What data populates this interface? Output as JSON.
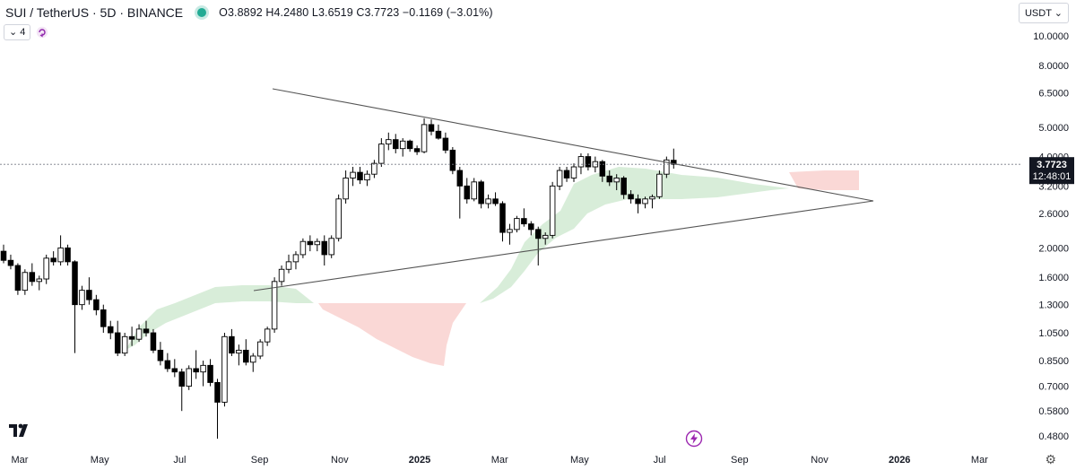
{
  "header": {
    "symbol": "SUI / TetherUS · 5D · BINANCE",
    "ohlc": "O3.8892 H4.2480 L3.6519 C3.7723 −0.1169 (−3.01%)",
    "indicator_count": "4",
    "currency": "USDT"
  },
  "price_label": {
    "price": "3.7723",
    "countdown": "12:48:01",
    "color": "#131722"
  },
  "chart_data": {
    "type": "candlestick",
    "scale": "log",
    "ylim": [
      0.45,
      11.5
    ],
    "y_ticks": [
      "10.0000",
      "8.0000",
      "6.5000",
      "5.0000",
      "4.0000",
      "3.2000",
      "2.6000",
      "2.0000",
      "1.6000",
      "1.3000",
      "1.0500",
      "0.8500",
      "0.7000",
      "0.5800",
      "0.4800"
    ],
    "x_ticks": [
      "Mar",
      "May",
      "Jul",
      "Sep",
      "Nov",
      "2025",
      "Mar",
      "May",
      "Jul",
      "Sep",
      "Nov",
      "2026",
      "Mar"
    ],
    "last_price": 3.7723,
    "colors": {
      "up": "#ffffff",
      "down": "#000000",
      "outline": "#000000",
      "cloud_bull": "#c8e6c9",
      "cloud_bear": "#f8c8c4",
      "trendline": "#555555",
      "last_price_line": "#787b86"
    },
    "candles": [
      [
        1.95,
        2.05,
        1.78,
        1.82
      ],
      [
        1.82,
        1.9,
        1.7,
        1.75
      ],
      [
        1.75,
        1.78,
        1.4,
        1.45
      ],
      [
        1.45,
        1.7,
        1.4,
        1.66
      ],
      [
        1.66,
        1.78,
        1.5,
        1.55
      ],
      [
        1.55,
        1.62,
        1.45,
        1.58
      ],
      [
        1.58,
        1.9,
        1.52,
        1.85
      ],
      [
        1.85,
        1.95,
        1.75,
        1.8
      ],
      [
        1.8,
        2.2,
        1.75,
        2.0
      ],
      [
        2.0,
        2.05,
        1.75,
        1.8
      ],
      [
        1.8,
        1.82,
        0.9,
        1.3
      ],
      [
        1.3,
        1.5,
        1.25,
        1.45
      ],
      [
        1.45,
        1.6,
        1.3,
        1.35
      ],
      [
        1.35,
        1.4,
        1.2,
        1.25
      ],
      [
        1.25,
        1.3,
        1.05,
        1.1
      ],
      [
        1.1,
        1.15,
        1.0,
        1.05
      ],
      [
        1.05,
        1.15,
        0.88,
        0.9
      ],
      [
        0.9,
        1.05,
        0.88,
        1.02
      ],
      [
        1.02,
        1.1,
        0.95,
        1.0
      ],
      [
        1.0,
        1.12,
        0.98,
        1.08
      ],
      [
        1.08,
        1.15,
        1.02,
        1.05
      ],
      [
        1.05,
        1.08,
        0.9,
        0.92
      ],
      [
        0.92,
        0.98,
        0.82,
        0.85
      ],
      [
        0.85,
        0.9,
        0.78,
        0.8
      ],
      [
        0.8,
        0.86,
        0.75,
        0.78
      ],
      [
        0.78,
        0.8,
        0.58,
        0.7
      ],
      [
        0.7,
        0.82,
        0.68,
        0.8
      ],
      [
        0.8,
        0.92,
        0.74,
        0.78
      ],
      [
        0.78,
        0.85,
        0.7,
        0.82
      ],
      [
        0.82,
        0.86,
        0.7,
        0.72
      ],
      [
        0.72,
        0.74,
        0.47,
        0.62
      ],
      [
        0.62,
        1.05,
        0.6,
        1.02
      ],
      [
        1.02,
        1.08,
        0.88,
        0.9
      ],
      [
        0.9,
        0.96,
        0.82,
        0.92
      ],
      [
        0.92,
        1.0,
        0.82,
        0.84
      ],
      [
        0.84,
        0.9,
        0.78,
        0.88
      ],
      [
        0.88,
        1.0,
        0.86,
        0.98
      ],
      [
        0.98,
        1.1,
        0.95,
        1.08
      ],
      [
        1.08,
        1.6,
        1.05,
        1.55
      ],
      [
        1.55,
        1.75,
        1.5,
        1.7
      ],
      [
        1.7,
        1.9,
        1.65,
        1.8
      ],
      [
        1.8,
        1.95,
        1.7,
        1.9
      ],
      [
        1.9,
        2.15,
        1.85,
        2.1
      ],
      [
        2.1,
        2.2,
        1.95,
        2.05
      ],
      [
        2.05,
        2.15,
        1.95,
        2.1
      ],
      [
        2.1,
        2.2,
        1.75,
        1.9
      ],
      [
        1.9,
        2.2,
        1.85,
        2.15
      ],
      [
        2.15,
        3.0,
        2.1,
        2.9
      ],
      [
        2.9,
        3.6,
        2.8,
        3.4
      ],
      [
        3.4,
        3.7,
        3.2,
        3.55
      ],
      [
        3.55,
        3.7,
        3.25,
        3.35
      ],
      [
        3.35,
        3.6,
        3.2,
        3.5
      ],
      [
        3.5,
        3.9,
        3.4,
        3.8
      ],
      [
        3.8,
        4.6,
        3.7,
        4.4
      ],
      [
        4.4,
        4.8,
        4.2,
        4.55
      ],
      [
        4.55,
        4.75,
        4.1,
        4.25
      ],
      [
        4.25,
        4.6,
        4.0,
        4.5
      ],
      [
        4.5,
        4.55,
        4.15,
        4.25
      ],
      [
        4.25,
        4.35,
        4.05,
        4.15
      ],
      [
        4.15,
        5.35,
        4.1,
        5.1
      ],
      [
        5.1,
        5.3,
        4.7,
        4.85
      ],
      [
        4.85,
        5.1,
        4.55,
        4.6
      ],
      [
        4.6,
        4.8,
        4.1,
        4.2
      ],
      [
        4.2,
        4.3,
        3.5,
        3.6
      ],
      [
        3.6,
        3.7,
        2.5,
        3.2
      ],
      [
        3.2,
        3.4,
        2.8,
        2.9
      ],
      [
        2.9,
        3.4,
        2.85,
        3.3
      ],
      [
        3.3,
        3.35,
        2.7,
        2.8
      ],
      [
        2.8,
        3.0,
        2.7,
        2.9
      ],
      [
        2.9,
        3.05,
        2.75,
        2.8
      ],
      [
        2.8,
        2.85,
        2.1,
        2.25
      ],
      [
        2.25,
        2.4,
        2.05,
        2.3
      ],
      [
        2.3,
        2.55,
        2.25,
        2.5
      ],
      [
        2.5,
        2.7,
        2.35,
        2.4
      ],
      [
        2.4,
        2.45,
        2.2,
        2.3
      ],
      [
        2.3,
        2.35,
        1.75,
        2.15
      ],
      [
        2.15,
        2.25,
        2.05,
        2.2
      ],
      [
        2.2,
        3.3,
        2.15,
        3.2
      ],
      [
        3.2,
        3.7,
        3.1,
        3.6
      ],
      [
        3.6,
        3.7,
        3.3,
        3.4
      ],
      [
        3.4,
        3.8,
        3.3,
        3.7
      ],
      [
        3.7,
        4.1,
        3.5,
        4.0
      ],
      [
        4.0,
        4.1,
        3.6,
        3.7
      ],
      [
        3.7,
        4.0,
        3.55,
        3.85
      ],
      [
        3.85,
        3.9,
        3.3,
        3.45
      ],
      [
        3.45,
        3.6,
        3.2,
        3.3
      ],
      [
        3.3,
        3.5,
        3.1,
        3.4
      ],
      [
        3.4,
        3.45,
        2.9,
        3.0
      ],
      [
        3.0,
        3.1,
        2.8,
        2.9
      ],
      [
        2.9,
        3.0,
        2.6,
        2.8
      ],
      [
        2.8,
        2.95,
        2.7,
        2.9
      ],
      [
        2.9,
        3.0,
        2.7,
        2.95
      ],
      [
        2.95,
        3.6,
        2.9,
        3.5
      ],
      [
        3.5,
        4.0,
        3.4,
        3.9
      ],
      [
        3.89,
        4.25,
        3.65,
        3.77
      ]
    ]
  }
}
